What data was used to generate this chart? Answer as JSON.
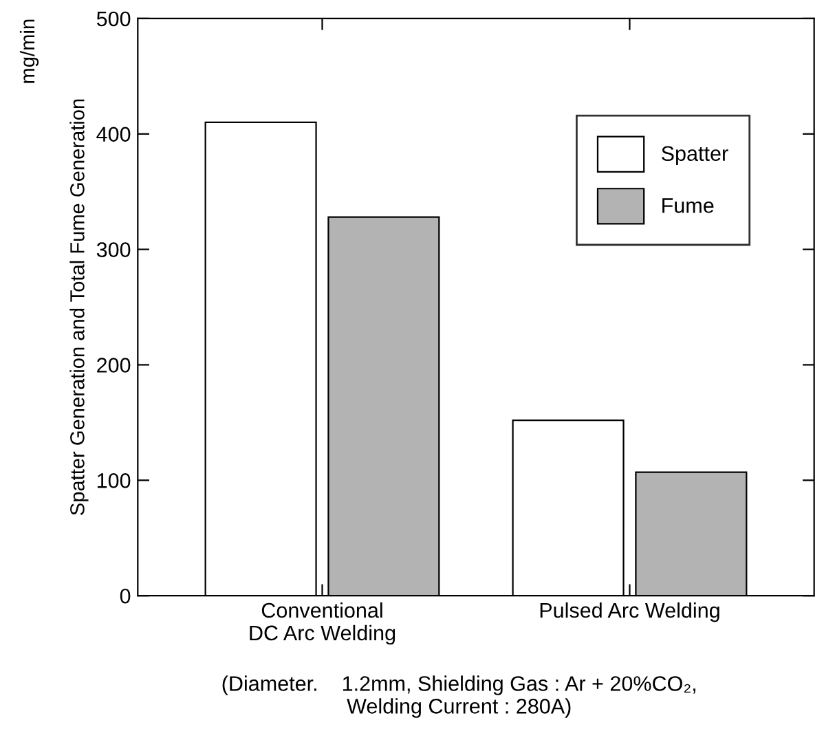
{
  "chart_data": {
    "type": "bar",
    "ylabel": "Spatter Generation and Total Fume Generation",
    "annotations": [
      "mg/min",
      "(Diameter.    1.2mm, Shielding Gas : Ar + 20%CO₂,\nWelding Current : 280A)"
    ],
    "categories": [
      "Conventional\nDC Arc Welding",
      "Pulsed Arc Welding"
    ],
    "series": [
      {
        "name": "Spatter",
        "color": "#ffffff",
        "values": [
          410,
          152
        ]
      },
      {
        "name": "Fume",
        "color": "#b3b3b3",
        "values": [
          328,
          107
        ]
      }
    ],
    "ylim": [
      0,
      500
    ],
    "yticks": [
      0,
      100,
      200,
      300,
      400,
      500
    ],
    "grid": false,
    "legend": "top right"
  }
}
